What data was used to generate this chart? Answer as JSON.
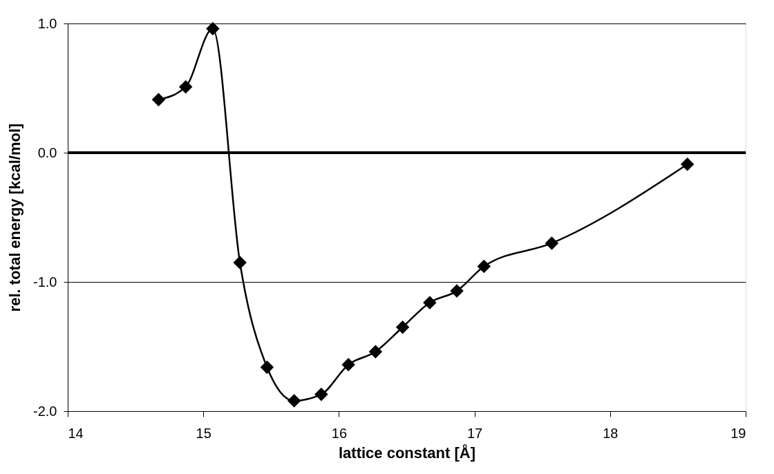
{
  "chart_data": {
    "type": "line",
    "xlabel": "lattice constant [Å]",
    "ylabel": "rel. total energy [kcal/mol]",
    "x": [
      14.67,
      14.87,
      15.07,
      15.27,
      15.47,
      15.67,
      15.87,
      16.07,
      16.27,
      16.47,
      16.67,
      16.87,
      17.07,
      17.57,
      18.57
    ],
    "series": [
      {
        "color": "#000000",
        "values": [
          0.41,
          0.51,
          0.96,
          -0.85,
          -1.66,
          -1.92,
          -1.87,
          -1.64,
          -1.54,
          -1.35,
          -1.16,
          -1.07,
          -0.88,
          -0.7,
          -0.09
        ]
      }
    ],
    "xlim": [
      14,
      19
    ],
    "xticks": [
      14,
      15,
      16,
      17,
      18,
      19
    ],
    "ylim": [
      -2.0,
      1.0
    ],
    "yticks": [
      {
        "value": -2,
        "label": "-2.0"
      },
      {
        "value": -1,
        "label": "-1.0"
      },
      {
        "value": 0,
        "label": "0.0"
      },
      {
        "value": 1,
        "label": "1.0"
      }
    ],
    "ref_lines": [
      {
        "axis": "y",
        "value": 0,
        "color": "#000000"
      }
    ],
    "grid": "y",
    "marker": "diamond",
    "line_style": "solid"
  }
}
